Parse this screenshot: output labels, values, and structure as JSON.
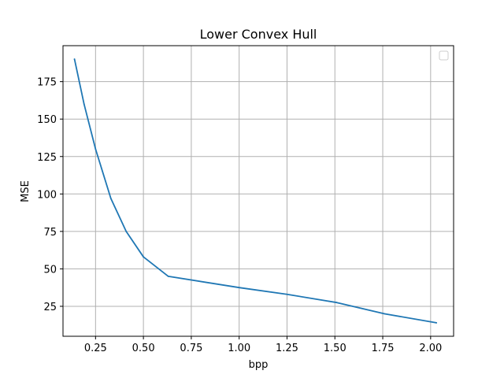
{
  "chart_data": {
    "type": "line",
    "title": "Lower Convex Hull",
    "xlabel": "bpp",
    "ylabel": "MSE",
    "xlim": [
      0.08,
      2.12
    ],
    "ylim": [
      5,
      199
    ],
    "x_ticks": [
      0.25,
      0.5,
      0.75,
      1.0,
      1.25,
      1.5,
      1.75,
      2.0
    ],
    "x_tick_labels": [
      "0.25",
      "0.50",
      "0.75",
      "1.00",
      "1.25",
      "1.50",
      "1.75",
      "2.00"
    ],
    "y_ticks": [
      25,
      50,
      75,
      100,
      125,
      150,
      175
    ],
    "y_tick_labels": [
      "25",
      "50",
      "75",
      "100",
      "125",
      "150",
      "175"
    ],
    "grid": true,
    "legend": {
      "position": "top-right",
      "entries": []
    },
    "series": [
      {
        "color": "#1f77b4",
        "x": [
          0.14,
          0.19,
          0.25,
          0.33,
          0.41,
          0.5,
          0.63,
          1.0,
          1.25,
          1.51,
          1.76,
          2.03
        ],
        "y": [
          190,
          160,
          130,
          97,
          75,
          58,
          45,
          37.5,
          33,
          27.5,
          20,
          14
        ]
      }
    ]
  }
}
